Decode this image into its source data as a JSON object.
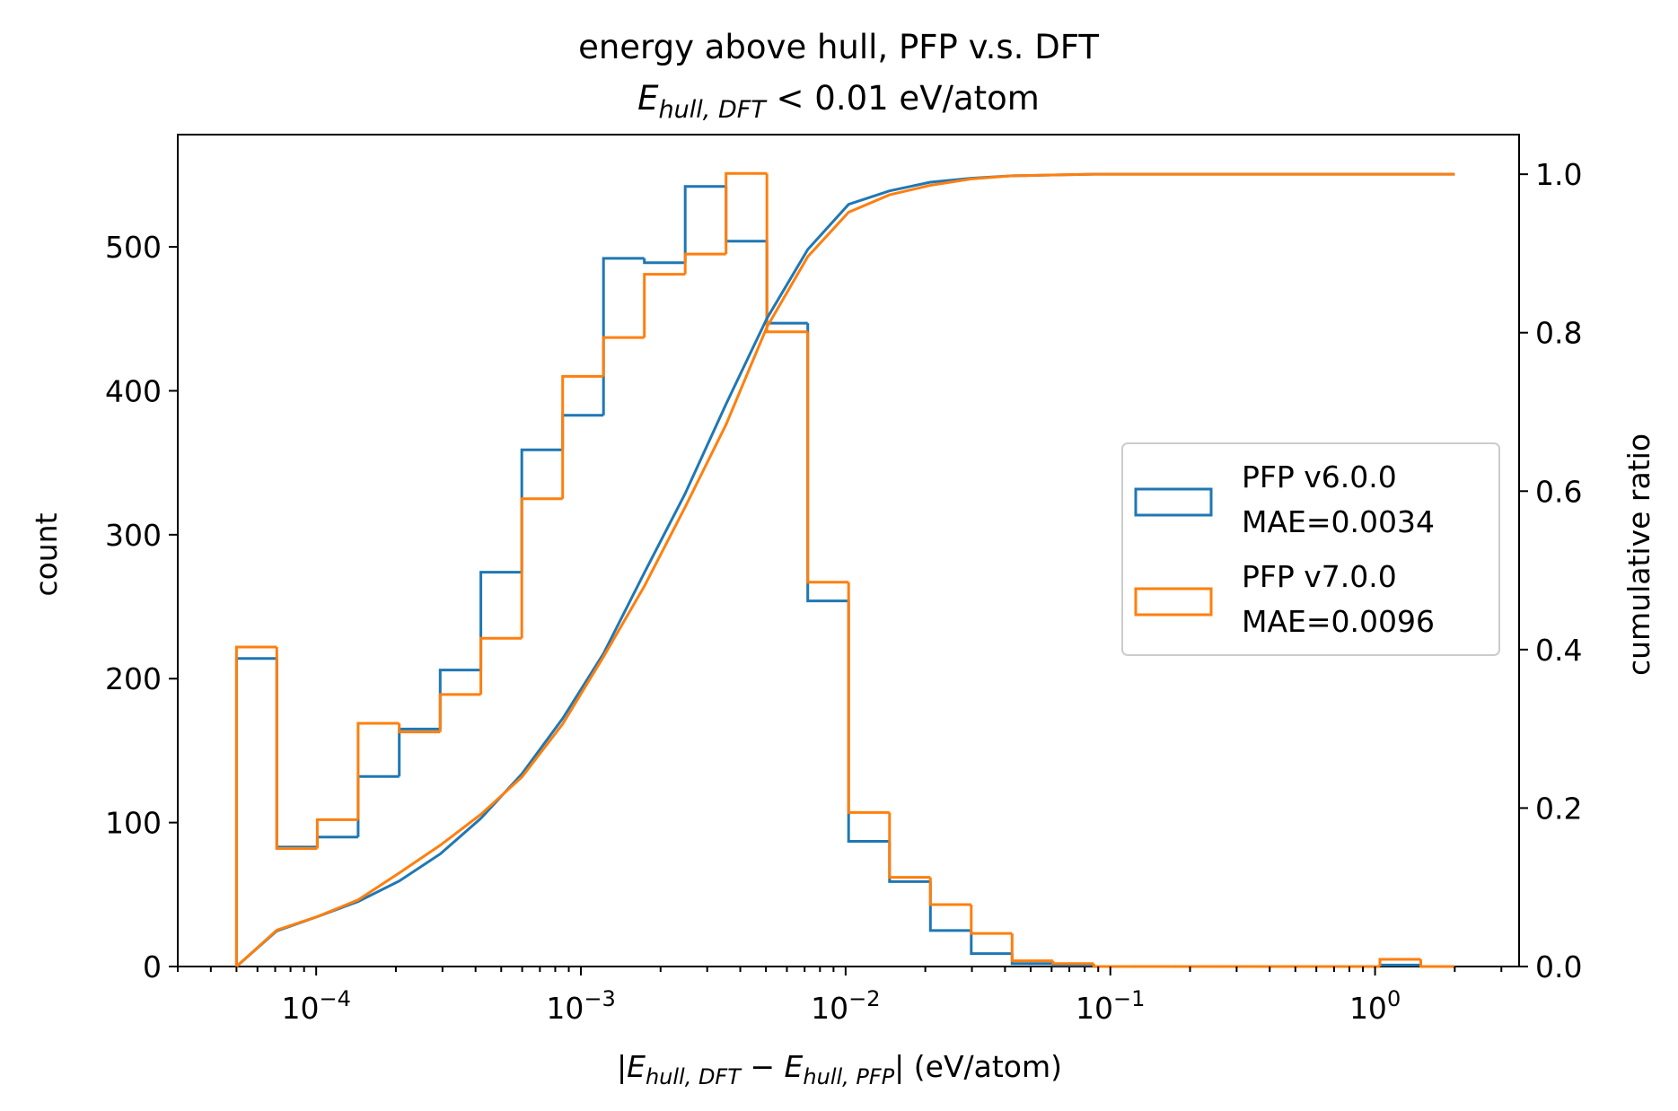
{
  "chart_data": {
    "type": "histogram-step-with-cumulative",
    "title_line1": "energy above hull, PFP v.s. DFT",
    "title_line2": {
      "E": "E",
      "sub": "hull, DFT",
      "rest": " <  0.01 eV/atom"
    },
    "xlabel": {
      "open": "|",
      "e1": "E",
      "sub1": "hull, DFT",
      "minus": " − ",
      "e2": "E",
      "sub2": "hull, PFP",
      "close": "| (eV/atom)"
    },
    "ylabel_left": "count",
    "ylabel_right": "cumulative ratio",
    "xscale": "log",
    "xlim": [
      3e-05,
      3.5
    ],
    "ylim_left": [
      0,
      578
    ],
    "ylim_right": [
      0,
      1.05
    ],
    "x_ticks": [
      {
        "value": 0.0001,
        "base": "10",
        "exp": "−4"
      },
      {
        "value": 0.001,
        "base": "10",
        "exp": "−3"
      },
      {
        "value": 0.01,
        "base": "10",
        "exp": "−2"
      },
      {
        "value": 0.1,
        "base": "10",
        "exp": "−1"
      },
      {
        "value": 1,
        "base": "10",
        "exp": "0"
      }
    ],
    "y_ticks_left": [
      "0",
      "100",
      "200",
      "300",
      "400",
      "500"
    ],
    "y_ticks_right": [
      "0.0",
      "0.2",
      "0.4",
      "0.6",
      "0.8",
      "1.0"
    ],
    "bin_edges": [
      5e-05,
      7.1e-05,
      0.000101,
      0.000144,
      0.000206,
      0.000294,
      0.000419,
      0.000598,
      0.000853,
      0.001217,
      0.001736,
      0.002477,
      0.003534,
      0.005043,
      0.007195,
      0.010266,
      0.014648,
      0.0209,
      0.02982,
      0.04255,
      0.06071,
      0.08663,
      0.1236,
      0.1764,
      0.2516,
      0.359,
      0.5123,
      0.731,
      1.043,
      1.488,
      2.0
    ],
    "series": [
      {
        "name": "PFP v6.0.0",
        "mae": "MAE=0.0034",
        "color": "#1f77b4",
        "counts": [
          214,
          83,
          90,
          132,
          165,
          206,
          274,
          359,
          383,
          492,
          489,
          542,
          504,
          447,
          254,
          87,
          59,
          25,
          9,
          2,
          1,
          0,
          0,
          0,
          0,
          0,
          0,
          0,
          1,
          0
        ],
        "cumulative": [
          0.0,
          0.045,
          0.063,
          0.082,
          0.108,
          0.142,
          0.187,
          0.243,
          0.313,
          0.395,
          0.497,
          0.597,
          0.71,
          0.818,
          0.905,
          0.962,
          0.979,
          0.99,
          0.995,
          0.998,
          0.999,
          1.0,
          1.0,
          1.0,
          1.0,
          1.0,
          1.0,
          1.0,
          1.0,
          1.0,
          1.0
        ]
      },
      {
        "name": "PFP v7.0.0",
        "mae": "MAE=0.0096",
        "color": "#ff7f0e",
        "counts": [
          222,
          82,
          102,
          169,
          163,
          189,
          228,
          325,
          410,
          437,
          481,
          495,
          551,
          441,
          267,
          107,
          62,
          43,
          23,
          4,
          2,
          0,
          0,
          0,
          0,
          0,
          0,
          0,
          5,
          0
        ],
        "cumulative": [
          0.0,
          0.046,
          0.063,
          0.084,
          0.118,
          0.153,
          0.192,
          0.239,
          0.306,
          0.391,
          0.48,
          0.58,
          0.684,
          0.807,
          0.896,
          0.952,
          0.974,
          0.986,
          0.994,
          0.998,
          0.999,
          1.0,
          1.0,
          1.0,
          1.0,
          1.0,
          1.0,
          1.0,
          1.0,
          1.0,
          1.0
        ]
      }
    ],
    "legend_position": "center-right"
  }
}
